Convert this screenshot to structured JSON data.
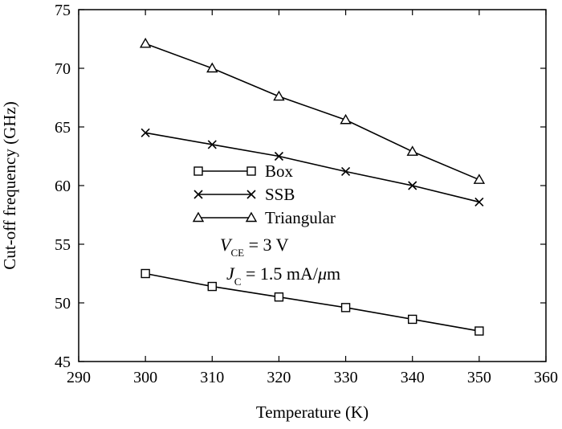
{
  "chart_data": {
    "type": "line",
    "title": "",
    "xlabel": "Temperature (K)",
    "ylabel": "Cut-off frequency (GHz)",
    "xlim": [
      290,
      360
    ],
    "ylim": [
      45,
      75
    ],
    "xticks": [
      290,
      300,
      310,
      320,
      330,
      340,
      350,
      360
    ],
    "yticks": [
      45,
      50,
      55,
      60,
      65,
      70,
      75
    ],
    "x": [
      300,
      310,
      320,
      330,
      340,
      350
    ],
    "series": [
      {
        "name": "Box",
        "marker": "square",
        "values": [
          52.5,
          51.4,
          50.5,
          49.6,
          48.6,
          47.6
        ]
      },
      {
        "name": "SSB",
        "marker": "x",
        "values": [
          64.5,
          63.5,
          62.5,
          61.2,
          60.0,
          58.6
        ]
      },
      {
        "name": "Triangular",
        "marker": "triangle",
        "values": [
          72.1,
          70.0,
          67.6,
          65.6,
          62.9,
          60.5
        ]
      }
    ],
    "legend": "center-left",
    "grid": false,
    "annotations": {
      "vce": {
        "symbol": "V",
        "subscript": "CE",
        "rest": " = 3 V"
      },
      "jc": {
        "symbol": "J",
        "subscript": "C",
        "rest": " = 1.5 mA/",
        "mu": "μ",
        "tail": "m"
      }
    },
    "colors": {
      "line": "#000000",
      "background": "#ffffff"
    }
  }
}
